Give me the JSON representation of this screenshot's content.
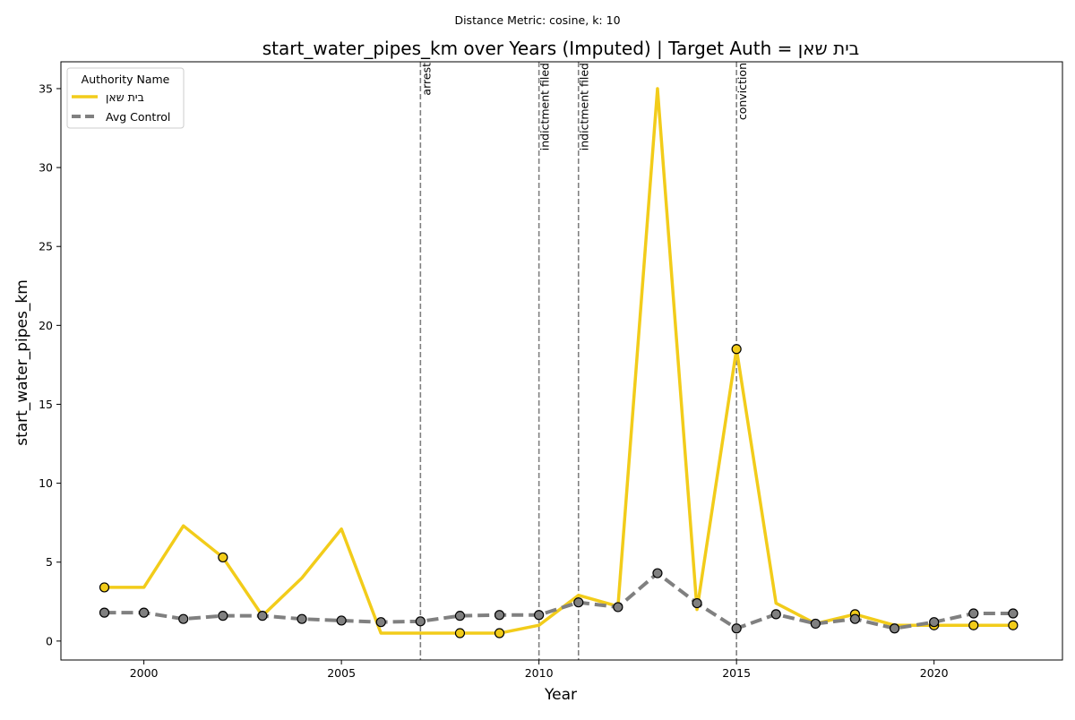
{
  "suptitle": "Distance Metric: cosine, k: 10",
  "chart_data": {
    "type": "line",
    "title": "start_water_pipes_km over Years (Imputed) | Target Auth = בית שאן",
    "xlabel": "Year",
    "ylabel": "start_water_pipes_km",
    "xlim": [
      1997.9,
      2023.25
    ],
    "ylim": [
      -1.2,
      36.7
    ],
    "xticks": [
      2000,
      2005,
      2010,
      2015,
      2020
    ],
    "xtick_labels": [
      "2000",
      "2005",
      "2010",
      "2015",
      "2020"
    ],
    "yticks": [
      0,
      5,
      10,
      15,
      20,
      25,
      30,
      35
    ],
    "ytick_labels": [
      "0",
      "5",
      "10",
      "15",
      "20",
      "25",
      "30",
      "35"
    ],
    "grid": false,
    "legend": {
      "title": "Authority Name",
      "placement": "top-left",
      "entries": [
        "בית שאן",
        "Avg Control"
      ]
    },
    "x": [
      1999,
      2000,
      2001,
      2002,
      2003,
      2004,
      2005,
      2006,
      2007,
      2008,
      2009,
      2010,
      2011,
      2012,
      2013,
      2014,
      2015,
      2016,
      2017,
      2018,
      2019,
      2020,
      2021,
      2022
    ],
    "series": [
      {
        "name": "בית שאן",
        "color": "#f2cc1a",
        "style": "solid",
        "values": [
          3.4,
          3.4,
          7.3,
          5.3,
          1.6,
          4.0,
          7.1,
          0.5,
          0.5,
          0.5,
          0.5,
          1.0,
          2.9,
          2.2,
          35.0,
          2.0,
          18.5,
          2.4,
          1.1,
          1.7,
          1.0,
          1.0,
          1.0,
          1.0
        ],
        "observed_years": [
          1999,
          2002,
          2008,
          2009,
          2015,
          2018,
          2020,
          2021,
          2022
        ]
      },
      {
        "name": "Avg Control",
        "color": "#808080",
        "style": "dashed",
        "values": [
          1.8,
          1.8,
          1.4,
          1.6,
          1.6,
          1.4,
          1.3,
          1.2,
          1.25,
          1.6,
          1.65,
          1.65,
          2.45,
          2.15,
          4.3,
          2.4,
          0.8,
          1.7,
          1.1,
          1.4,
          0.8,
          1.2,
          1.75,
          1.75
        ]
      }
    ],
    "events": [
      {
        "year": 2007,
        "label": "arrest"
      },
      {
        "year": 2010,
        "label": "indictment filed"
      },
      {
        "year": 2011,
        "label": "indictment filed"
      },
      {
        "year": 2015,
        "label": "conviction"
      }
    ],
    "colors": {
      "target": "#f2cc1a",
      "control": "#808080",
      "event_line": "#808080",
      "marker_edge": "#000000"
    }
  }
}
